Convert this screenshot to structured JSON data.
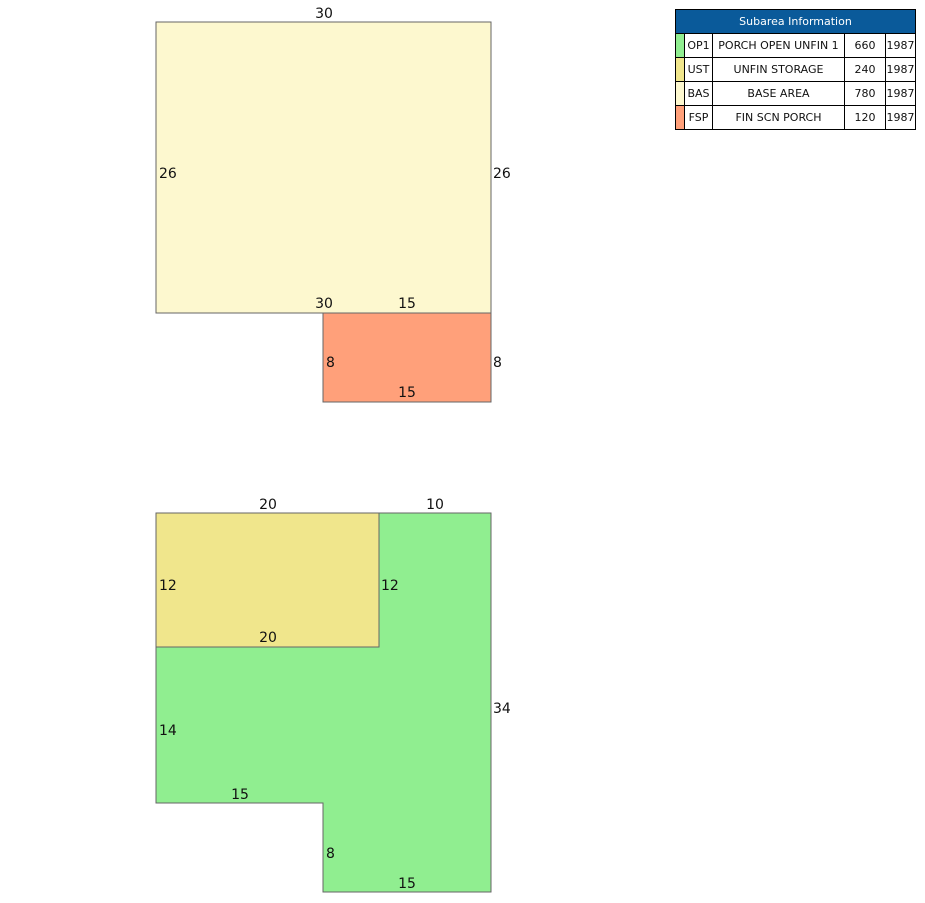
{
  "colors": {
    "OP1": "#90ee90",
    "UST": "#f0e68c",
    "BAS": "#fdf8cf",
    "FSP": "#ffa07a",
    "header": "#0a5a9a"
  },
  "legend": {
    "title": "Subarea Information",
    "rows": [
      {
        "code": "OP1",
        "description": "PORCH OPEN UNFIN 1",
        "area": "660",
        "year": "1987"
      },
      {
        "code": "UST",
        "description": "UNFIN STORAGE",
        "area": "240",
        "year": "1987"
      },
      {
        "code": "BAS",
        "description": "BASE AREA",
        "area": "780",
        "year": "1987"
      },
      {
        "code": "FSP",
        "description": "FIN SCN PORCH",
        "area": "120",
        "year": "1987"
      }
    ]
  },
  "sketch": {
    "base_area": {
      "top": "30",
      "left": "26",
      "right": "26",
      "bottom": "30"
    },
    "fin_scn_porch": {
      "top": "15",
      "left": "8",
      "right": "8",
      "bottom": "15"
    },
    "unfin_storage": {
      "top": "20",
      "left": "12",
      "right": "12",
      "bottom": "20"
    },
    "porch_open": {
      "top": "10",
      "right": "34",
      "left": "14",
      "step": "15",
      "inner": "8",
      "bottom": "15"
    }
  }
}
